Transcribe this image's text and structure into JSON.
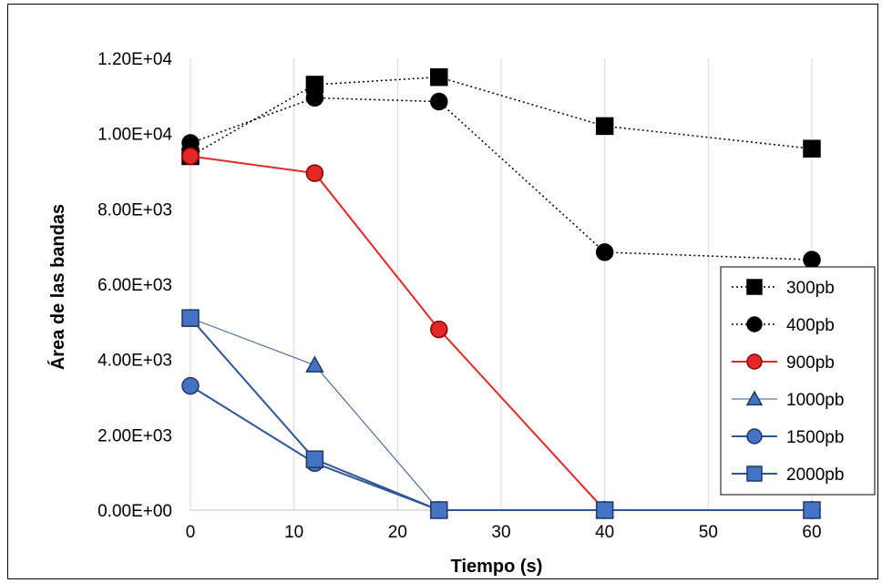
{
  "chart_data": {
    "type": "line",
    "xlabel": "Tiempo (s)",
    "ylabel": "Área de las bandas",
    "xlim": [
      0,
      60
    ],
    "ylim": [
      0,
      12000
    ],
    "x_ticks": [
      "0",
      "10",
      "20",
      "30",
      "40",
      "50",
      "60"
    ],
    "y_ticks": [
      "0.00E+00",
      "2.00E+03",
      "4.00E+03",
      "6.00E+03",
      "8.00E+03",
      "1.00E+04",
      "1.20E+04"
    ],
    "grid": "vertical",
    "legend_position": "right",
    "series": [
      {
        "name": "300pb",
        "marker": "square",
        "line": "dotted",
        "color": "#000000",
        "fill": "#000000",
        "points": [
          [
            0,
            9400
          ],
          [
            12,
            11300
          ],
          [
            24,
            11500
          ],
          [
            40,
            10200
          ],
          [
            60,
            9600
          ]
        ]
      },
      {
        "name": "400pb",
        "marker": "circle",
        "line": "dotted",
        "color": "#000000",
        "fill": "#000000",
        "points": [
          [
            0,
            9750
          ],
          [
            12,
            10950
          ],
          [
            24,
            10850
          ],
          [
            40,
            6850
          ],
          [
            60,
            6650
          ]
        ]
      },
      {
        "name": "900pb",
        "marker": "circle",
        "line": "solid",
        "color": "#e32626",
        "fill": "#e32626",
        "points": [
          [
            0,
            9400
          ],
          [
            12,
            8950
          ],
          [
            24,
            4800
          ],
          [
            40,
            0
          ],
          [
            60,
            0
          ]
        ]
      },
      {
        "name": "1000pb",
        "marker": "triangle",
        "line": "thin",
        "color": "#2f5597",
        "fill": "#4472c4",
        "points": [
          [
            0,
            5100
          ],
          [
            12,
            3850
          ],
          [
            24,
            0
          ],
          [
            40,
            0
          ],
          [
            60,
            0
          ]
        ]
      },
      {
        "name": "1500pb",
        "marker": "circle",
        "line": "solid",
        "color": "#2f5597",
        "fill": "#4472c4",
        "points": [
          [
            0,
            3300
          ],
          [
            12,
            1250
          ],
          [
            24,
            0
          ],
          [
            40,
            0
          ],
          [
            60,
            0
          ]
        ]
      },
      {
        "name": "2000pb",
        "marker": "square",
        "line": "solid",
        "color": "#2f5597",
        "fill": "#4472c4",
        "points": [
          [
            0,
            5100
          ],
          [
            12,
            1350
          ],
          [
            24,
            0
          ],
          [
            40,
            0
          ],
          [
            60,
            0
          ]
        ]
      }
    ]
  }
}
